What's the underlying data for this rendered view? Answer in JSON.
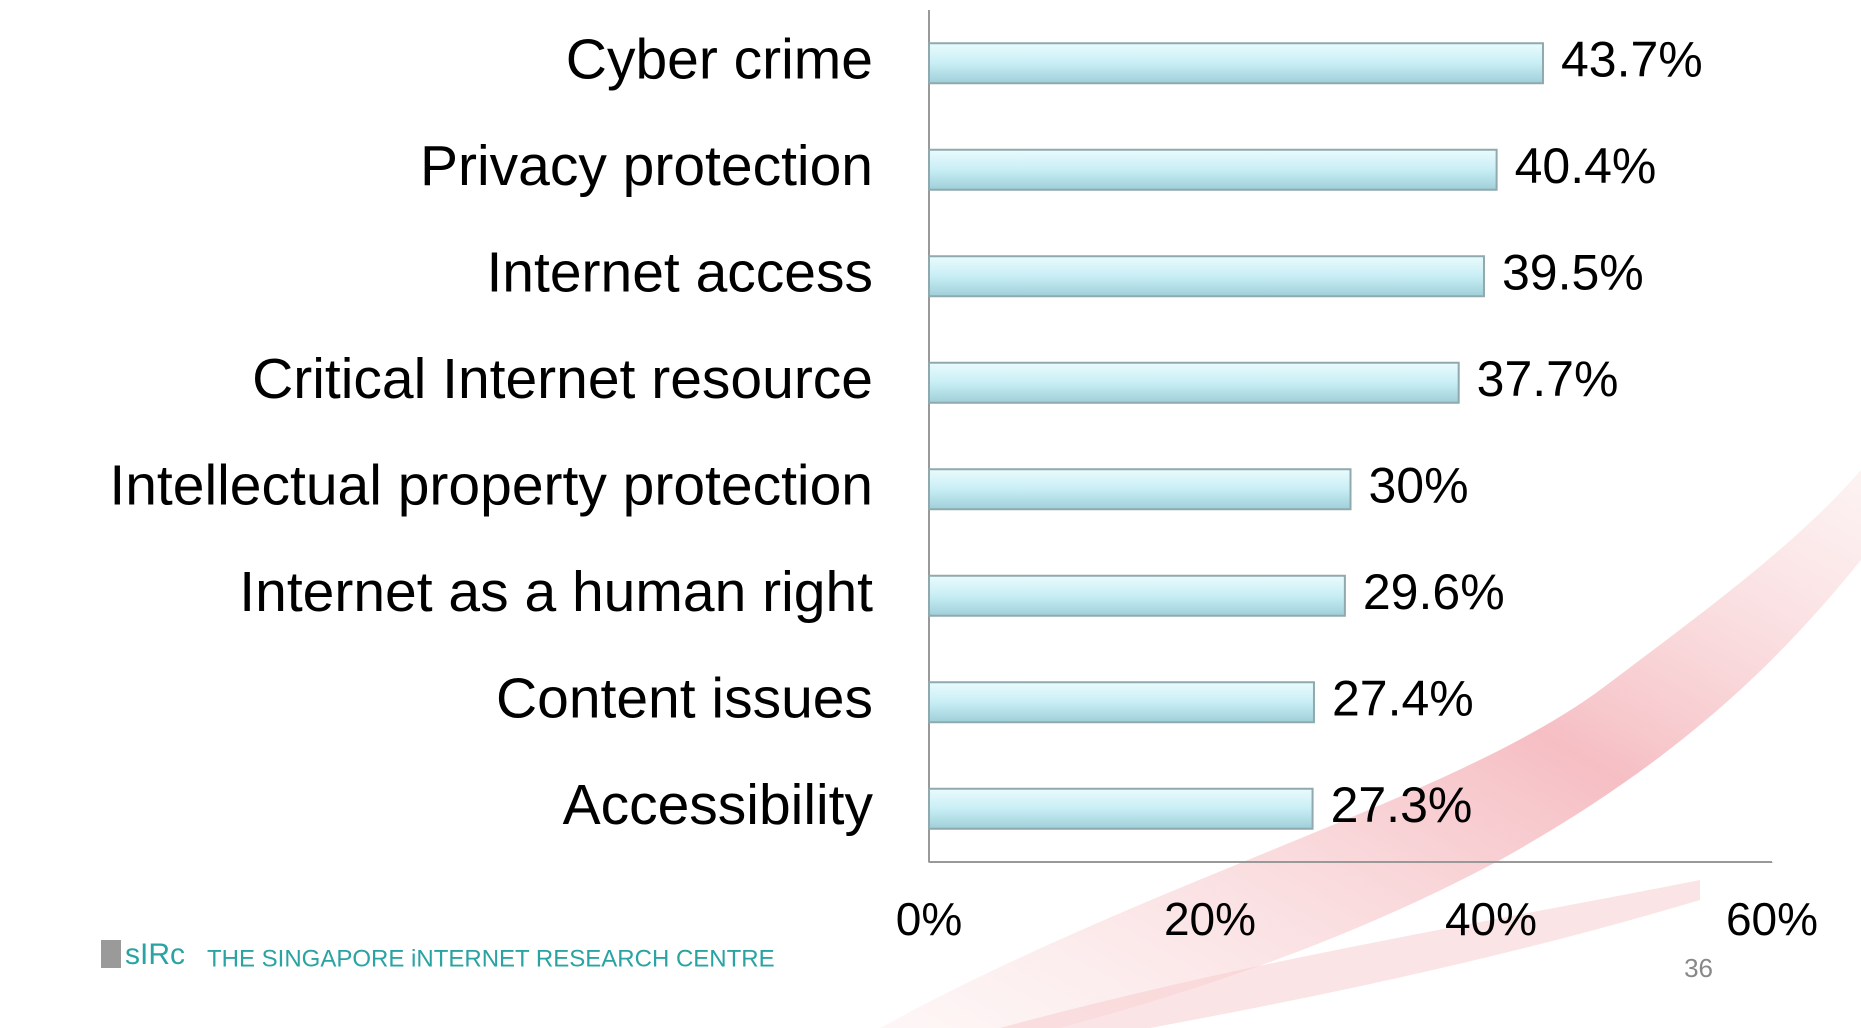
{
  "chart_data": {
    "type": "bar",
    "orientation": "horizontal",
    "categories": [
      "Cyber crime",
      "Privacy protection",
      "Internet access",
      "Critical Internet resource",
      "Intellectual property protection",
      "Internet as a human right",
      "Content issues",
      "Accessibility"
    ],
    "values": [
      43.7,
      40.4,
      39.5,
      37.7,
      30,
      29.6,
      27.4,
      27.3
    ],
    "value_labels": [
      "43.7%",
      "40.4%",
      "39.5%",
      "37.7%",
      "30%",
      "29.6%",
      "27.4%",
      "27.3%"
    ],
    "color": "#c8eef5",
    "xlim": [
      0,
      60
    ],
    "xticks": [
      {
        "value": 0,
        "label": "0%"
      },
      {
        "value": 20,
        "label": "20%"
      },
      {
        "value": 40,
        "label": "40%"
      },
      {
        "value": 60,
        "label": "60%"
      }
    ],
    "grid": false
  },
  "footer": {
    "logo": "sIRc",
    "organization": "THE SINGAPORE iNTERNET RESEARCH CENTRE",
    "page_number": "36"
  }
}
